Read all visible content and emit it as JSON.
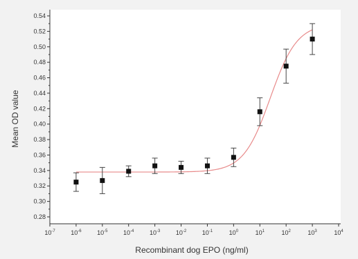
{
  "chart_data": {
    "type": "scatter",
    "title": "",
    "xlabel": "Recombinant dog EPO (ng/ml)",
    "ylabel": "Mean OD value",
    "x_scale": "log",
    "xlim": [
      1e-07,
      10000.0
    ],
    "ylim": [
      0.27,
      0.55
    ],
    "x_ticks": [
      {
        "base": "10",
        "exp": "-7"
      },
      {
        "base": "10",
        "exp": "-6"
      },
      {
        "base": "10",
        "exp": "-5"
      },
      {
        "base": "10",
        "exp": "-4"
      },
      {
        "base": "10",
        "exp": "-3"
      },
      {
        "base": "10",
        "exp": "-2"
      },
      {
        "base": "10",
        "exp": "-1"
      },
      {
        "base": "10",
        "exp": "0"
      },
      {
        "base": "10",
        "exp": "1"
      },
      {
        "base": "10",
        "exp": "2"
      },
      {
        "base": "10",
        "exp": "3"
      },
      {
        "base": "10",
        "exp": "4"
      }
    ],
    "y_ticks": [
      "0.28",
      "0.30",
      "0.32",
      "0.34",
      "0.36",
      "0.38",
      "0.40",
      "0.42",
      "0.44",
      "0.46",
      "0.48",
      "0.50",
      "0.52",
      "0.54"
    ],
    "grid": false,
    "legend": "none",
    "points": [
      {
        "x": 1e-06,
        "y": 0.325,
        "err": 0.012
      },
      {
        "x": 1e-05,
        "y": 0.327,
        "err": 0.017
      },
      {
        "x": 0.0001,
        "y": 0.339,
        "err": 0.007
      },
      {
        "x": 0.001,
        "y": 0.346,
        "err": 0.01
      },
      {
        "x": 0.01,
        "y": 0.344,
        "err": 0.008
      },
      {
        "x": 0.1,
        "y": 0.346,
        "err": 0.01
      },
      {
        "x": 1,
        "y": 0.357,
        "err": 0.012
      },
      {
        "x": 10,
        "y": 0.416,
        "err": 0.018
      },
      {
        "x": 100,
        "y": 0.475,
        "err": 0.022
      },
      {
        "x": 1000,
        "y": 0.51,
        "err": 0.02
      }
    ],
    "fit": {
      "type": "logistic",
      "bottom": 0.338,
      "top": 0.53,
      "ec50": 25,
      "hill": 0.85
    },
    "colors": {
      "point": "#111111",
      "fit": "#e88a8a",
      "axis": "#333333",
      "background": "#f2f2f2",
      "plot_background": "#ffffff"
    }
  }
}
